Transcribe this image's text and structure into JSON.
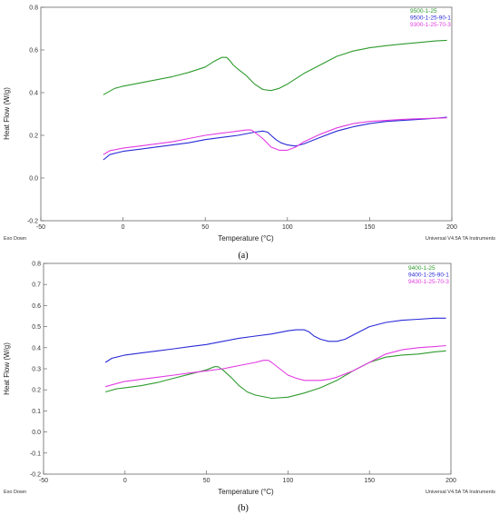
{
  "chart_data": [
    {
      "type": "line",
      "caption": "(a)",
      "xlabel": "Temperature (°C)",
      "ylabel": "Heat Flow (W/g)",
      "xlim": [
        -50,
        200
      ],
      "ylim": [
        -0.2,
        0.8
      ],
      "xticks": [
        -50,
        0,
        50,
        100,
        150,
        200
      ],
      "yticks": [
        -0.2,
        0.0,
        0.2,
        0.4,
        0.6,
        0.8
      ],
      "xtick_labels": [
        "-50",
        "0",
        "50",
        "100",
        "150",
        "200"
      ],
      "ytick_labels": [
        "-0.2",
        "0.0",
        "0.2",
        "0.4",
        "0.6",
        "0.8"
      ],
      "exo_label": "Exo Down",
      "instrument_label": "Universal V4.5A TA Instruments",
      "legend_position": "top-right",
      "series": [
        {
          "name": "9500-1-25",
          "color": "#2e9b2e",
          "x": [
            -12,
            -5,
            0,
            10,
            20,
            30,
            40,
            50,
            55,
            60,
            63,
            65,
            67,
            70,
            75,
            80,
            85,
            90,
            95,
            100,
            105,
            110,
            120,
            130,
            140,
            150,
            160,
            170,
            180,
            190,
            197
          ],
          "y": [
            0.39,
            0.42,
            0.43,
            0.445,
            0.46,
            0.475,
            0.495,
            0.52,
            0.545,
            0.565,
            0.565,
            0.55,
            0.53,
            0.51,
            0.48,
            0.44,
            0.415,
            0.41,
            0.42,
            0.44,
            0.465,
            0.49,
            0.53,
            0.57,
            0.595,
            0.61,
            0.62,
            0.628,
            0.635,
            0.642,
            0.645
          ]
        },
        {
          "name": "9500-1-25-90-1",
          "color": "#2a2ad8",
          "x": [
            -12,
            -8,
            0,
            10,
            20,
            30,
            40,
            50,
            60,
            70,
            80,
            85,
            88,
            90,
            93,
            96,
            100,
            105,
            110,
            120,
            130,
            140,
            150,
            160,
            170,
            180,
            190,
            197
          ],
          "y": [
            0.085,
            0.11,
            0.125,
            0.135,
            0.145,
            0.155,
            0.165,
            0.18,
            0.19,
            0.2,
            0.215,
            0.22,
            0.215,
            0.2,
            0.18,
            0.165,
            0.155,
            0.15,
            0.16,
            0.19,
            0.22,
            0.24,
            0.255,
            0.265,
            0.27,
            0.275,
            0.28,
            0.285
          ]
        },
        {
          "name": "9300-1-25-70-3",
          "color": "#e23be2",
          "x": [
            -12,
            -8,
            0,
            10,
            20,
            30,
            40,
            50,
            60,
            65,
            70,
            75,
            78,
            80,
            85,
            90,
            95,
            100,
            105,
            110,
            120,
            130,
            140,
            150,
            160,
            170,
            180,
            190,
            197
          ],
          "y": [
            0.11,
            0.128,
            0.14,
            0.15,
            0.16,
            0.17,
            0.185,
            0.2,
            0.21,
            0.215,
            0.22,
            0.225,
            0.225,
            0.215,
            0.185,
            0.145,
            0.13,
            0.13,
            0.145,
            0.17,
            0.205,
            0.235,
            0.255,
            0.265,
            0.27,
            0.275,
            0.278,
            0.28,
            0.282
          ]
        }
      ]
    },
    {
      "type": "line",
      "caption": "(b)",
      "xlabel": "Temperature (°C)",
      "ylabel": "Heat Flow (W/g)",
      "xlim": [
        -50,
        200
      ],
      "ylim": [
        -0.2,
        0.8
      ],
      "xticks": [
        -50,
        0,
        50,
        100,
        150,
        200
      ],
      "yticks": [
        -0.2,
        -0.1,
        0.0,
        0.1,
        0.2,
        0.3,
        0.4,
        0.5,
        0.6,
        0.7,
        0.8
      ],
      "xtick_labels": [
        "-50",
        "0",
        "50",
        "100",
        "150",
        "200"
      ],
      "ytick_labels": [
        "-0.2",
        "-0.1",
        "0.0",
        "0.1",
        "0.2",
        "0.3",
        "0.4",
        "0.5",
        "0.6",
        "0.7",
        "0.8"
      ],
      "exo_label": "Exo Down",
      "instrument_label": "Universal V4.5A TA Instruments",
      "legend_position": "top-right",
      "series": [
        {
          "name": "9400-1-25",
          "color": "#2e9b2e",
          "x": [
            -12,
            -5,
            0,
            10,
            20,
            30,
            40,
            50,
            55,
            57,
            60,
            65,
            70,
            75,
            80,
            90,
            100,
            110,
            120,
            130,
            140,
            150,
            160,
            170,
            180,
            190,
            197
          ],
          "y": [
            0.19,
            0.205,
            0.21,
            0.22,
            0.235,
            0.255,
            0.275,
            0.295,
            0.31,
            0.31,
            0.295,
            0.26,
            0.22,
            0.19,
            0.175,
            0.16,
            0.165,
            0.185,
            0.21,
            0.245,
            0.29,
            0.33,
            0.355,
            0.365,
            0.37,
            0.38,
            0.385
          ]
        },
        {
          "name": "9400-1-25-90-1",
          "color": "#2a2ad8",
          "x": [
            -12,
            -8,
            0,
            10,
            20,
            30,
            40,
            50,
            60,
            70,
            80,
            90,
            100,
            105,
            110,
            113,
            116,
            120,
            125,
            130,
            135,
            140,
            145,
            150,
            160,
            170,
            180,
            190,
            197
          ],
          "y": [
            0.33,
            0.35,
            0.365,
            0.375,
            0.385,
            0.395,
            0.405,
            0.415,
            0.43,
            0.445,
            0.455,
            0.465,
            0.48,
            0.485,
            0.485,
            0.475,
            0.455,
            0.44,
            0.43,
            0.43,
            0.44,
            0.46,
            0.48,
            0.5,
            0.52,
            0.53,
            0.535,
            0.54,
            0.54
          ]
        },
        {
          "name": "9430-1-25-70-3",
          "color": "#e23be2",
          "x": [
            -12,
            -5,
            0,
            10,
            20,
            30,
            40,
            50,
            60,
            70,
            80,
            85,
            88,
            90,
            95,
            100,
            105,
            110,
            115,
            120,
            125,
            130,
            140,
            150,
            160,
            170,
            180,
            190,
            197
          ],
          "y": [
            0.215,
            0.23,
            0.24,
            0.25,
            0.26,
            0.27,
            0.28,
            0.29,
            0.3,
            0.315,
            0.33,
            0.34,
            0.34,
            0.33,
            0.3,
            0.27,
            0.255,
            0.245,
            0.245,
            0.245,
            0.25,
            0.26,
            0.29,
            0.33,
            0.37,
            0.39,
            0.4,
            0.405,
            0.41
          ]
        }
      ]
    }
  ]
}
